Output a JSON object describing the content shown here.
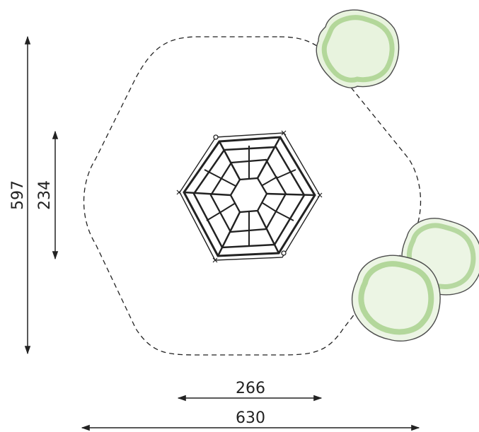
{
  "dimensions": {
    "overall_height": "597",
    "equipment_height": "234",
    "equipment_width": "266",
    "overall_width": "630"
  },
  "colors": {
    "line": "#222222",
    "tree_outline": "#4d4d4d",
    "tree_fill": "#a9d18e"
  }
}
